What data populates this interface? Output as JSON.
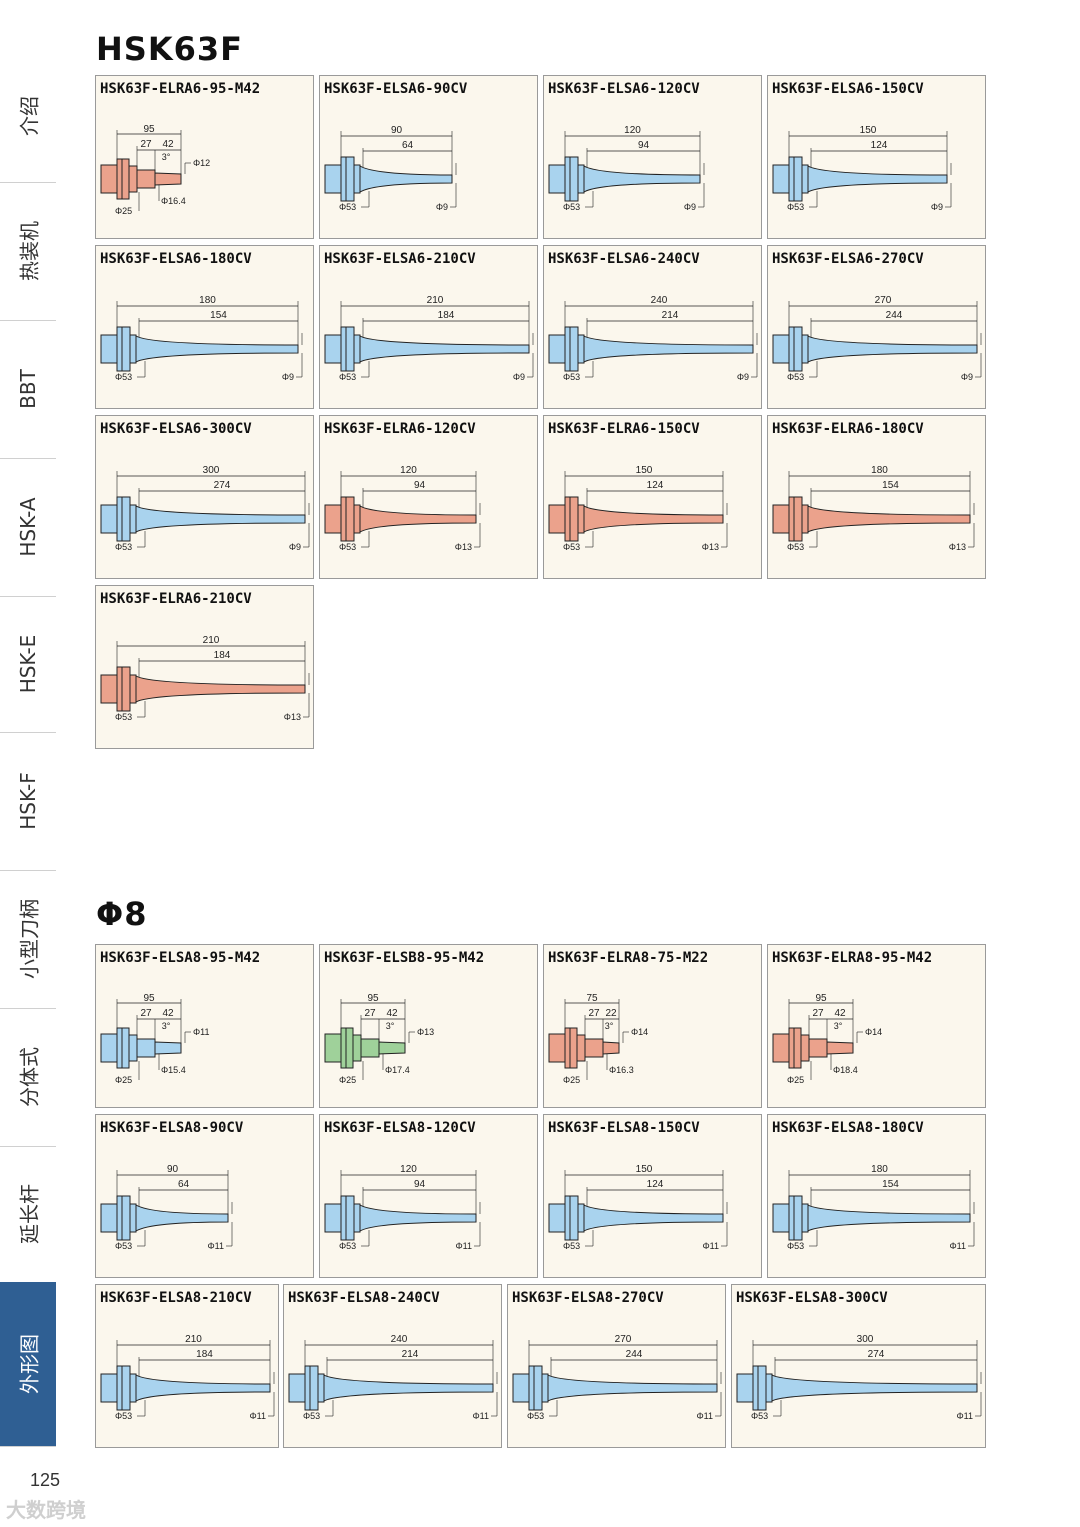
{
  "sidebar": {
    "tabs": [
      {
        "label": "介绍",
        "active": false
      },
      {
        "label": "热装机",
        "active": false
      },
      {
        "label": "BBT",
        "active": false
      },
      {
        "label": "HSK-A",
        "active": false
      },
      {
        "label": "HSK-E",
        "active": false
      },
      {
        "label": "HSK-F",
        "active": false
      },
      {
        "label": "小型刀柄",
        "active": false
      },
      {
        "label": "分体式",
        "active": false
      },
      {
        "label": "延长杆",
        "active": false
      },
      {
        "label": "外形图",
        "active": true
      }
    ]
  },
  "colors": {
    "blue": "#a9d3ee",
    "orange": "#eba28c",
    "green": "#9fd19a",
    "line": "#222222"
  },
  "sections": [
    {
      "title": "HSK63F",
      "cards": [
        {
          "name": "HSK63F-ELRA6-95-M42",
          "kind": "short",
          "color": "orange",
          "L": "95",
          "L1": "27",
          "L2": "42",
          "angle": "3°",
          "d1": "Φ12",
          "d2": "Φ16.4",
          "d3": "Φ25"
        },
        {
          "name": "HSK63F-ELSA6-90CV",
          "kind": "cone",
          "color": "blue",
          "L": "90",
          "L1": "64",
          "d1": "Φ53",
          "d2": "Φ9"
        },
        {
          "name": "HSK63F-ELSA6-120CV",
          "kind": "cone",
          "color": "blue",
          "L": "120",
          "L1": "94",
          "d1": "Φ53",
          "d2": "Φ9"
        },
        {
          "name": "HSK63F-ELSA6-150CV",
          "kind": "cone",
          "color": "blue",
          "L": "150",
          "L1": "124",
          "d1": "Φ53",
          "d2": "Φ9"
        },
        {
          "name": "HSK63F-ELSA6-180CV",
          "kind": "cone",
          "color": "blue",
          "L": "180",
          "L1": "154",
          "d1": "Φ53",
          "d2": "Φ9"
        },
        {
          "name": "HSK63F-ELSA6-210CV",
          "kind": "cone",
          "color": "blue",
          "L": "210",
          "L1": "184",
          "d1": "Φ53",
          "d2": "Φ9"
        },
        {
          "name": "HSK63F-ELSA6-240CV",
          "kind": "cone",
          "color": "blue",
          "L": "240",
          "L1": "214",
          "d1": "Φ53",
          "d2": "Φ9"
        },
        {
          "name": "HSK63F-ELSA6-270CV",
          "kind": "cone",
          "color": "blue",
          "L": "270",
          "L1": "244",
          "d1": "Φ53",
          "d2": "Φ9"
        },
        {
          "name": "HSK63F-ELSA6-300CV",
          "kind": "cone",
          "color": "blue",
          "L": "300",
          "L1": "274",
          "d1": "Φ53",
          "d2": "Φ9"
        },
        {
          "name": "HSK63F-ELRA6-120CV",
          "kind": "cone",
          "color": "orange",
          "L": "120",
          "L1": "94",
          "d1": "Φ53",
          "d2": "Φ13"
        },
        {
          "name": "HSK63F-ELRA6-150CV",
          "kind": "cone",
          "color": "orange",
          "L": "150",
          "L1": "124",
          "d1": "Φ53",
          "d2": "Φ13"
        },
        {
          "name": "HSK63F-ELRA6-180CV",
          "kind": "cone",
          "color": "orange",
          "L": "180",
          "L1": "154",
          "d1": "Φ53",
          "d2": "Φ13"
        },
        {
          "name": "HSK63F-ELRA6-210CV",
          "kind": "cone",
          "color": "orange",
          "L": "210",
          "L1": "184",
          "d1": "Φ53",
          "d2": "Φ13"
        }
      ]
    },
    {
      "title": "Φ8",
      "cards": [
        {
          "name": "HSK63F-ELSA8-95-M42",
          "kind": "short",
          "color": "blue",
          "L": "95",
          "L1": "27",
          "L2": "42",
          "angle": "3°",
          "d1": "Φ11",
          "d2": "Φ15.4",
          "d3": "Φ25"
        },
        {
          "name": "HSK63F-ELSB8-95-M42",
          "kind": "short",
          "color": "green",
          "L": "95",
          "L1": "27",
          "L2": "42",
          "angle": "3°",
          "d1": "Φ13",
          "d2": "Φ17.4",
          "d3": "Φ25"
        },
        {
          "name": "HSK63F-ELRA8-75-M22",
          "kind": "short",
          "color": "orange",
          "L": "75",
          "L1": "27",
          "L2": "22",
          "angle": "3°",
          "d1": "Φ14",
          "d2": "Φ16.3",
          "d3": "Φ25"
        },
        {
          "name": "HSK63F-ELRA8-95-M42",
          "kind": "short",
          "color": "orange",
          "L": "95",
          "L1": "27",
          "L2": "42",
          "angle": "3°",
          "d1": "Φ14",
          "d2": "Φ18.4",
          "d3": "Φ25"
        },
        {
          "name": "HSK63F-ELSA8-90CV",
          "kind": "cone",
          "color": "blue",
          "L": "90",
          "L1": "64",
          "d1": "Φ53",
          "d2": "Φ11"
        },
        {
          "name": "HSK63F-ELSA8-120CV",
          "kind": "cone",
          "color": "blue",
          "L": "120",
          "L1": "94",
          "d1": "Φ53",
          "d2": "Φ11"
        },
        {
          "name": "HSK63F-ELSA8-150CV",
          "kind": "cone",
          "color": "blue",
          "L": "150",
          "L1": "124",
          "d1": "Φ53",
          "d2": "Φ11"
        },
        {
          "name": "HSK63F-ELSA8-180CV",
          "kind": "cone",
          "color": "blue",
          "L": "180",
          "L1": "154",
          "d1": "Φ53",
          "d2": "Φ11"
        },
        {
          "name": "HSK63F-ELSA8-210CV",
          "kind": "cone",
          "color": "blue",
          "L": "210",
          "L1": "184",
          "d1": "Φ53",
          "d2": "Φ11"
        },
        {
          "name": "HSK63F-ELSA8-240CV",
          "kind": "cone",
          "color": "blue",
          "L": "240",
          "L1": "214",
          "d1": "Φ53",
          "d2": "Φ11"
        },
        {
          "name": "HSK63F-ELSA8-270CV",
          "kind": "cone",
          "color": "blue",
          "L": "270",
          "L1": "244",
          "d1": "Φ53",
          "d2": "Φ11"
        },
        {
          "name": "HSK63F-ELSA8-300CV",
          "kind": "cone",
          "color": "blue",
          "L": "300",
          "L1": "274",
          "d1": "Φ53",
          "d2": "Φ11"
        }
      ]
    }
  ],
  "footer": {
    "page_number": "125",
    "watermark": "大数跨境"
  }
}
